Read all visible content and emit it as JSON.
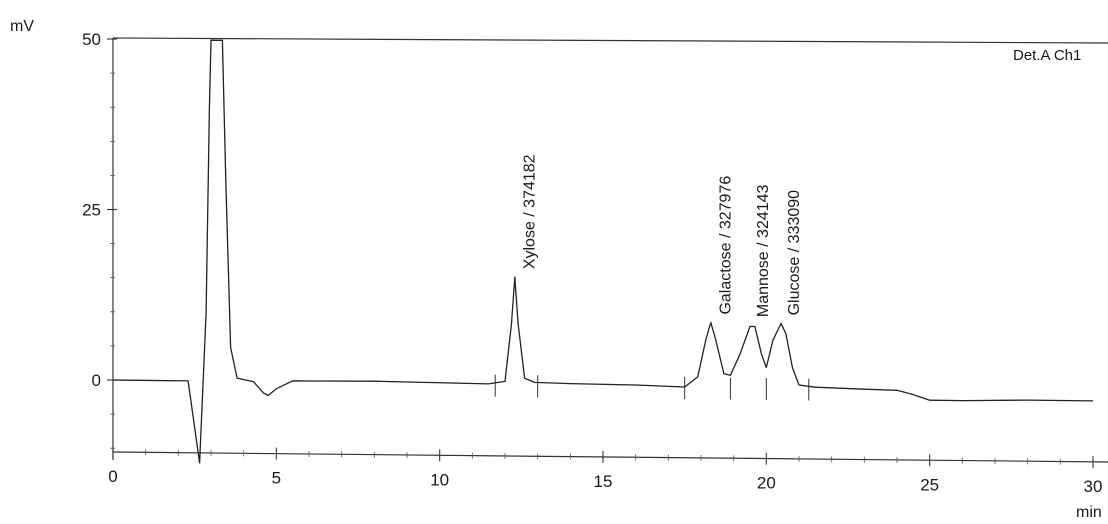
{
  "chart_data": {
    "type": "line",
    "title": "",
    "ylabel": "mV",
    "xlabel": "min",
    "channel": "Det.A Ch1",
    "xlim": [
      0,
      30
    ],
    "ylim": [
      -12,
      50
    ],
    "x_ticks": [
      0,
      5,
      10,
      15,
      20,
      25,
      30
    ],
    "x_tick_labels": [
      "0",
      "5",
      "10",
      "15",
      "20",
      "25",
      "30"
    ],
    "y_ticks": [
      0,
      25,
      50
    ],
    "y_tick_labels": [
      "0",
      "25",
      "50"
    ],
    "grid": false,
    "baseline": [
      [
        0,
        0
      ],
      [
        2.3,
        0
      ],
      [
        2.65,
        -12
      ],
      [
        2.85,
        10
      ],
      [
        2.95,
        40
      ],
      [
        3.0,
        50
      ],
      [
        3.2,
        50
      ],
      [
        3.35,
        50
      ],
      [
        3.45,
        30
      ],
      [
        3.6,
        5
      ],
      [
        3.8,
        0.5
      ],
      [
        4.3,
        0
      ],
      [
        4.6,
        -1.6
      ],
      [
        4.75,
        -2
      ],
      [
        5.0,
        -1
      ],
      [
        5.5,
        0.2
      ],
      [
        6,
        0.2
      ],
      [
        8,
        0.3
      ],
      [
        11.5,
        0.1
      ],
      [
        12.0,
        0.5
      ],
      [
        12.2,
        9
      ],
      [
        12.3,
        15.8
      ],
      [
        12.4,
        9
      ],
      [
        12.6,
        1
      ],
      [
        12.9,
        0.4
      ],
      [
        14,
        0.3
      ],
      [
        16,
        0.2
      ],
      [
        17.5,
        0
      ],
      [
        17.9,
        1.5
      ],
      [
        18.15,
        7
      ],
      [
        18.3,
        9.5
      ],
      [
        18.45,
        7
      ],
      [
        18.7,
        2
      ],
      [
        18.9,
        1.8
      ],
      [
        19.2,
        5
      ],
      [
        19.5,
        9
      ],
      [
        19.65,
        9
      ],
      [
        19.85,
        5
      ],
      [
        20.0,
        3
      ],
      [
        20.2,
        7
      ],
      [
        20.45,
        9.5
      ],
      [
        20.6,
        8
      ],
      [
        20.8,
        3
      ],
      [
        21.0,
        0.5
      ],
      [
        21.5,
        0.2
      ],
      [
        23,
        0
      ],
      [
        24,
        -0.1
      ],
      [
        24.5,
        -0.7
      ],
      [
        25,
        -1.5
      ],
      [
        26,
        -1.5
      ],
      [
        28,
        -1.3
      ],
      [
        30,
        -1.3
      ]
    ],
    "peaks": [
      {
        "name": "Xylose",
        "area": "374182",
        "label": "Xylose / 374182",
        "x": 12.3,
        "height": 15.8
      },
      {
        "name": "Galactose",
        "area": "327976",
        "label": "Galactose / 327976",
        "x": 18.3,
        "height": 9.5
      },
      {
        "name": "Mannose",
        "area": "324143",
        "label": "Mannose / 324143",
        "x": 19.6,
        "height": 9.2
      },
      {
        "name": "Glucose",
        "area": "333090",
        "label": "Glucose / 333090",
        "x": 20.45,
        "height": 9.5
      }
    ],
    "integration_marks": [
      11.7,
      13.0,
      17.5,
      18.9,
      20.0,
      21.3
    ]
  }
}
